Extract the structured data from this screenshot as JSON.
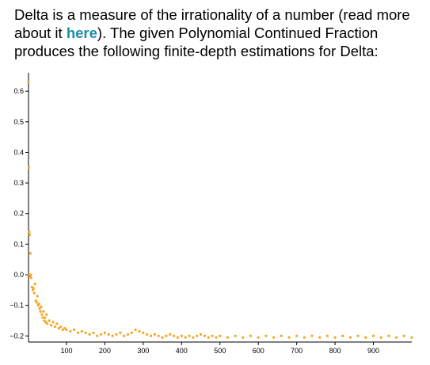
{
  "intro": {
    "before_link": "Delta is a measure of the irrationality of a number (read more about it ",
    "link_text": "here",
    "after_link": "). The given Polynomial Continued Fraction produces the following finite-depth estimations for Delta:"
  },
  "colors": {
    "points": "#f5a623",
    "link": "#1a8fa3",
    "axis": "#000000"
  },
  "chart_data": {
    "type": "scatter",
    "title": "",
    "xlabel": "",
    "ylabel": "",
    "xlim": [
      1,
      1000
    ],
    "ylim": [
      -0.22,
      0.66
    ],
    "x_ticks": [
      100,
      200,
      300,
      400,
      500,
      600,
      700,
      800,
      900
    ],
    "y_ticks": [
      -0.2,
      -0.1,
      0.0,
      0.1,
      0.2,
      0.3,
      0.4,
      0.5,
      0.6
    ],
    "x_tick_labels": [
      "100",
      "200",
      "300",
      "400",
      "500",
      "600",
      "700",
      "800",
      "900"
    ],
    "y_tick_labels": [
      "−0.2",
      "−0.1",
      "0.0",
      "0.1",
      "0.2",
      "0.3",
      "0.4",
      "0.5",
      "0.6"
    ],
    "series": [
      {
        "marker_color": "#f5a623",
        "points": [
          [
            1,
            0.63
          ],
          [
            2,
            0.35
          ],
          [
            3,
            0.14
          ],
          [
            4,
            0.13
          ],
          [
            6,
            0.07
          ],
          [
            3,
            0.0
          ],
          [
            5,
            -0.005
          ],
          [
            7,
            0.0
          ],
          [
            8,
            -0.01
          ],
          [
            10,
            -0.04
          ],
          [
            12,
            -0.05
          ],
          [
            14,
            -0.045
          ],
          [
            16,
            -0.06
          ],
          [
            18,
            -0.03
          ],
          [
            20,
            -0.085
          ],
          [
            22,
            -0.09
          ],
          [
            24,
            -0.07
          ],
          [
            26,
            -0.1
          ],
          [
            28,
            -0.095
          ],
          [
            30,
            -0.11
          ],
          [
            32,
            -0.12
          ],
          [
            34,
            -0.105
          ],
          [
            36,
            -0.13
          ],
          [
            38,
            -0.14
          ],
          [
            40,
            -0.12
          ],
          [
            42,
            -0.15
          ],
          [
            44,
            -0.14
          ],
          [
            46,
            -0.155
          ],
          [
            48,
            -0.13
          ],
          [
            50,
            -0.16
          ],
          [
            55,
            -0.15
          ],
          [
            60,
            -0.165
          ],
          [
            65,
            -0.155
          ],
          [
            70,
            -0.17
          ],
          [
            75,
            -0.16
          ],
          [
            80,
            -0.175
          ],
          [
            85,
            -0.17
          ],
          [
            90,
            -0.18
          ],
          [
            95,
            -0.175
          ],
          [
            100,
            -0.18
          ],
          [
            110,
            -0.185
          ],
          [
            120,
            -0.18
          ],
          [
            130,
            -0.19
          ],
          [
            140,
            -0.185
          ],
          [
            150,
            -0.19
          ],
          [
            160,
            -0.195
          ],
          [
            170,
            -0.19
          ],
          [
            180,
            -0.2
          ],
          [
            190,
            -0.195
          ],
          [
            200,
            -0.19
          ],
          [
            210,
            -0.195
          ],
          [
            220,
            -0.2
          ],
          [
            230,
            -0.195
          ],
          [
            240,
            -0.19
          ],
          [
            250,
            -0.2
          ],
          [
            260,
            -0.195
          ],
          [
            270,
            -0.19
          ],
          [
            280,
            -0.18
          ],
          [
            290,
            -0.185
          ],
          [
            300,
            -0.19
          ],
          [
            310,
            -0.195
          ],
          [
            320,
            -0.2
          ],
          [
            330,
            -0.195
          ],
          [
            340,
            -0.2
          ],
          [
            350,
            -0.205
          ],
          [
            360,
            -0.2
          ],
          [
            370,
            -0.195
          ],
          [
            380,
            -0.2
          ],
          [
            390,
            -0.205
          ],
          [
            400,
            -0.2
          ],
          [
            410,
            -0.205
          ],
          [
            420,
            -0.2
          ],
          [
            430,
            -0.205
          ],
          [
            440,
            -0.2
          ],
          [
            450,
            -0.195
          ],
          [
            460,
            -0.2
          ],
          [
            470,
            -0.205
          ],
          [
            480,
            -0.2
          ],
          [
            490,
            -0.205
          ],
          [
            500,
            -0.2
          ],
          [
            520,
            -0.205
          ],
          [
            540,
            -0.2
          ],
          [
            560,
            -0.205
          ],
          [
            580,
            -0.2
          ],
          [
            600,
            -0.205
          ],
          [
            620,
            -0.2
          ],
          [
            640,
            -0.205
          ],
          [
            660,
            -0.2
          ],
          [
            680,
            -0.205
          ],
          [
            700,
            -0.2
          ],
          [
            720,
            -0.205
          ],
          [
            740,
            -0.2
          ],
          [
            760,
            -0.205
          ],
          [
            780,
            -0.2
          ],
          [
            800,
            -0.205
          ],
          [
            820,
            -0.2
          ],
          [
            840,
            -0.205
          ],
          [
            860,
            -0.2
          ],
          [
            880,
            -0.205
          ],
          [
            900,
            -0.2
          ],
          [
            920,
            -0.205
          ],
          [
            940,
            -0.2
          ],
          [
            960,
            -0.205
          ],
          [
            980,
            -0.2
          ],
          [
            1000,
            -0.205
          ]
        ]
      }
    ]
  }
}
